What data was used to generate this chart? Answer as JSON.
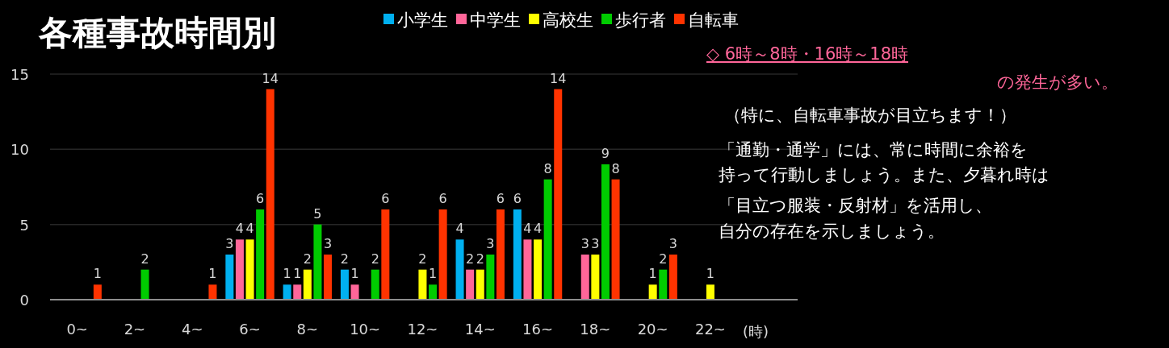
{
  "chart_data": {
    "type": "bar",
    "title": "各種事故時間別",
    "xlabel": "(時)",
    "categories": [
      "0~",
      "2~",
      "4~",
      "6~",
      "8~",
      "10~",
      "12~",
      "14~",
      "16~",
      "18~",
      "20~",
      "22~"
    ],
    "series": [
      {
        "name": "小学生",
        "color": "#00b0f0",
        "values": [
          null,
          null,
          null,
          3,
          1,
          2,
          null,
          4,
          6,
          null,
          null,
          null
        ]
      },
      {
        "name": "中学生",
        "color": "#ff6699",
        "values": [
          null,
          null,
          null,
          4,
          1,
          1,
          null,
          2,
          4,
          3,
          null,
          null
        ]
      },
      {
        "name": "高校生",
        "color": "#ffff00",
        "values": [
          null,
          null,
          null,
          4,
          2,
          null,
          2,
          2,
          4,
          3,
          1,
          1
        ]
      },
      {
        "name": "歩行者",
        "color": "#00cc00",
        "values": [
          null,
          2,
          null,
          6,
          5,
          2,
          1,
          3,
          8,
          9,
          2,
          null
        ]
      },
      {
        "name": "自転車",
        "color": "#ff3300",
        "values": [
          1,
          null,
          1,
          14,
          3,
          6,
          6,
          6,
          14,
          8,
          3,
          null
        ]
      }
    ],
    "ylim": [
      0,
      15
    ],
    "yticks": [
      0,
      5,
      10,
      15
    ],
    "grid": "y",
    "legend": "top",
    "data_labels": true,
    "annotations": [
      "◇ 6時～8時・16時～18時",
      "の発生が多い。",
      "（特に、自転車事故が目立ちます！）",
      "「通勤・通学」には、常に時間に余裕を",
      "持って行動しましょう。また、夕暮れ時は",
      "「目立つ服装・反射材」を活用し、",
      "自分の存在を示しましょう。"
    ]
  }
}
